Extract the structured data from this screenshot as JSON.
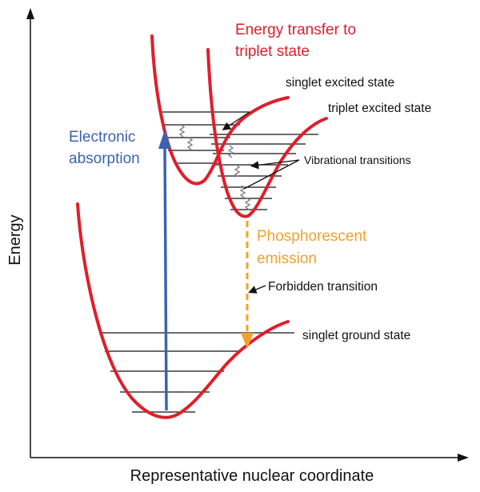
{
  "axes": {
    "y_label": "Energy",
    "x_label": "Representative nuclear coordinate"
  },
  "labels": {
    "energy_transfer_line1": "Energy transfer to",
    "energy_transfer_line2": "triplet state",
    "singlet_excited": "singlet excited state",
    "triplet_excited": "triplet excited state",
    "electronic_line1": "Electronic",
    "electronic_line2": "absorption",
    "vibrational": "Vibrational transitions",
    "phosphorescent_line1": "Phosphorescent",
    "phosphorescent_line2": "emission",
    "forbidden": "Forbidden transition",
    "singlet_ground": "singlet ground state"
  },
  "colors": {
    "curve": "#e01e2b",
    "absorption": "#3a63b0",
    "emission": "#f0a22c",
    "axis": "#111111",
    "level_line": "#111111",
    "wavy": "#888888"
  }
}
